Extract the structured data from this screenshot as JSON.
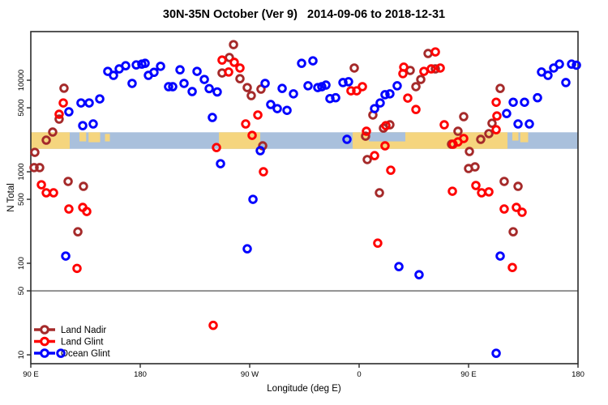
{
  "title": "30N-35N October (Ver 9)   2014-09-06 to 2018-12-31",
  "chart_data": {
    "type": "scatter",
    "xlabel": "Longitude (deg E)",
    "ylabel": "N Total",
    "x_axis": {
      "unit": "degrees east of 90E, wrapping 90E>180>90W>0>90E>180",
      "range_deg": [
        0,
        450
      ],
      "ticks": [
        {
          "deg": 0,
          "label": "90 E"
        },
        {
          "deg": 90,
          "label": "180"
        },
        {
          "deg": 180,
          "label": "90 W"
        },
        {
          "deg": 270,
          "label": "0"
        },
        {
          "deg": 360,
          "label": "90 E"
        },
        {
          "deg": 450,
          "label": "180"
        }
      ]
    },
    "y_axis": {
      "scale": "log",
      "range": [
        8,
        34000
      ],
      "ticks": [
        {
          "value": 10000,
          "label": "10000"
        },
        {
          "value": 5000,
          "label": "5000"
        },
        {
          "value": 1000,
          "label": "1000"
        },
        {
          "value": 500,
          "label": "500"
        },
        {
          "value": 100,
          "label": "100"
        },
        {
          "value": 50,
          "label": "50"
        },
        {
          "value": 10,
          "label": "10"
        }
      ]
    },
    "reference_line_value": 50,
    "reference_line_color": "#8f8f8f",
    "frame_color": "#2b2b2b",
    "map_band": {
      "description": "land/ocean strip for 30N-35N plotted across longitude",
      "top_value": 2700,
      "bottom_value": 1780,
      "ocean_color": "#a9c0dc",
      "land_color": "#f5d57e",
      "land_patches": [
        {
          "deg": [
            0,
            32
          ],
          "top": 0,
          "height": 1
        },
        {
          "deg": [
            40,
            45.5
          ],
          "top": 0,
          "height": 0.55
        },
        {
          "deg": [
            47.5,
            57
          ],
          "top": 0,
          "height": 0.6
        },
        {
          "deg": [
            61,
            65
          ],
          "top": 0.1,
          "height": 0.45
        },
        {
          "deg": [
            154.7,
            188.7
          ],
          "top": 0,
          "height": 1
        },
        {
          "deg": [
            264.7,
            392
          ],
          "top": 0,
          "height": 1
        },
        {
          "deg": [
            396,
            401
          ],
          "top": 0,
          "height": 0.5
        },
        {
          "deg": [
            402.5,
            409
          ],
          "top": 0,
          "height": 0.6
        }
      ],
      "ocean_patches": [
        {
          "deg": [
            278,
            308
          ],
          "top": 0,
          "height": 0.55
        }
      ]
    },
    "legend": {
      "position": "bottom-left",
      "entries": [
        "Land Nadir",
        "Land Glint",
        "Ocean Glint"
      ]
    },
    "series": [
      {
        "name": "Land Nadir",
        "color": "#a52a2a",
        "points": [
          [
            27.3,
            8180
          ],
          [
            23.3,
            3760
          ],
          [
            18,
            2715
          ],
          [
            12.7,
            2215
          ],
          [
            3.3,
            1630
          ],
          [
            2.7,
            1110
          ],
          [
            7.3,
            1110
          ],
          [
            30.7,
            784
          ],
          [
            43.3,
            693
          ],
          [
            38.7,
            221
          ],
          [
            166.7,
            24500
          ],
          [
            163.3,
            17700
          ],
          [
            157.3,
            12000
          ],
          [
            172,
            10400
          ],
          [
            178,
            8320
          ],
          [
            181.3,
            6790
          ],
          [
            189.3,
            8000
          ],
          [
            266,
            13600
          ],
          [
            190.7,
            1920
          ],
          [
            275.3,
            2450
          ],
          [
            276.7,
            1360
          ],
          [
            286.7,
            589
          ],
          [
            281.3,
            4170
          ],
          [
            295.3,
            3260
          ],
          [
            290,
            3000
          ],
          [
            326.7,
            19600
          ],
          [
            312,
            12800
          ],
          [
            332.7,
            13300
          ],
          [
            320.7,
            10200
          ],
          [
            316.7,
            8510
          ],
          [
            356,
            4000
          ],
          [
            351.3,
            2770
          ],
          [
            346,
            2000
          ],
          [
            360.7,
            1665
          ],
          [
            360,
            1085
          ],
          [
            365.3,
            1130
          ],
          [
            389.3,
            784
          ],
          [
            400.7,
            693
          ],
          [
            396.7,
            221
          ],
          [
            386,
            8140
          ],
          [
            379.3,
            3390
          ],
          [
            370,
            2260
          ],
          [
            376.7,
            2610
          ]
        ]
      },
      {
        "name": "Land Glint",
        "color": "#ff0000",
        "points": [
          [
            26.7,
            5650
          ],
          [
            23.3,
            4250
          ],
          [
            8.7,
            721
          ],
          [
            12.7,
            589
          ],
          [
            18.7,
            589
          ],
          [
            31.3,
            392
          ],
          [
            42.7,
            408
          ],
          [
            46,
            368
          ],
          [
            38,
            88
          ],
          [
            157.3,
            16600
          ],
          [
            167.3,
            15700
          ],
          [
            162.7,
            12300
          ],
          [
            172,
            13600
          ],
          [
            182,
            2500
          ],
          [
            152.7,
            1840
          ],
          [
            191.3,
            1000
          ],
          [
            176.7,
            3330
          ],
          [
            186.7,
            4170
          ],
          [
            150,
            21
          ],
          [
            263.3,
            7670
          ],
          [
            268,
            7670
          ],
          [
            272.7,
            8510
          ],
          [
            292,
            3190
          ],
          [
            282.7,
            1500
          ],
          [
            291.3,
            1920
          ],
          [
            296,
            1040
          ],
          [
            285.3,
            166
          ],
          [
            276,
            2770
          ],
          [
            306.7,
            13900
          ],
          [
            306,
            11800
          ],
          [
            323.3,
            12500
          ],
          [
            329.3,
            13300
          ],
          [
            336.7,
            13600
          ],
          [
            332.7,
            20400
          ],
          [
            310,
            6380
          ],
          [
            316.7,
            4790
          ],
          [
            340,
            3260
          ],
          [
            347.3,
            2000
          ],
          [
            351.3,
            2120
          ],
          [
            356,
            2310
          ],
          [
            346.7,
            613
          ],
          [
            366,
            708
          ],
          [
            370.7,
            589
          ],
          [
            376.7,
            603
          ],
          [
            389.3,
            392
          ],
          [
            399.3,
            408
          ],
          [
            404,
            361
          ],
          [
            396,
            90
          ],
          [
            382.7,
            5750
          ],
          [
            383.3,
            4070
          ],
          [
            382.7,
            2880
          ]
        ]
      },
      {
        "name": "Ocean Glint",
        "color": "#0000ff",
        "points": [
          [
            31.3,
            4520
          ],
          [
            41.3,
            5650
          ],
          [
            48,
            5650
          ],
          [
            56.7,
            6250
          ],
          [
            42.7,
            3190
          ],
          [
            51.3,
            3330
          ],
          [
            28.7,
            120
          ],
          [
            24.7,
            10.4
          ],
          [
            63.3,
            12500
          ],
          [
            68,
            11300
          ],
          [
            72.7,
            13300
          ],
          [
            78,
            14400
          ],
          [
            86.7,
            14700
          ],
          [
            91.3,
            15000
          ],
          [
            94,
            15300
          ],
          [
            83.3,
            9230
          ],
          [
            96.7,
            11300
          ],
          [
            101.3,
            12200
          ],
          [
            106.7,
            14200
          ],
          [
            113.3,
            8500
          ],
          [
            116.7,
            8500
          ],
          [
            122.7,
            13000
          ],
          [
            126,
            9230
          ],
          [
            132.7,
            7520
          ],
          [
            136.7,
            12500
          ],
          [
            142.7,
            10200
          ],
          [
            146.7,
            8100
          ],
          [
            153.3,
            7450
          ],
          [
            149.3,
            3920
          ],
          [
            192.7,
            9230
          ],
          [
            206.7,
            8140
          ],
          [
            216,
            7100
          ],
          [
            228,
            8700
          ],
          [
            222.7,
            15300
          ],
          [
            232,
            16300
          ],
          [
            236,
            8320
          ],
          [
            239.3,
            8500
          ],
          [
            242.7,
            8850
          ],
          [
            246,
            6300
          ],
          [
            250.7,
            6440
          ],
          [
            256.7,
            9430
          ],
          [
            261.3,
            9630
          ],
          [
            197.3,
            5430
          ],
          [
            202.7,
            4900
          ],
          [
            210.7,
            4690
          ],
          [
            291.3,
            6950
          ],
          [
            295.3,
            7100
          ],
          [
            287.3,
            5650
          ],
          [
            282.7,
            4900
          ],
          [
            260,
            2260
          ],
          [
            156,
            1225
          ],
          [
            188.7,
            1700
          ],
          [
            182.7,
            500
          ],
          [
            178,
            144
          ],
          [
            302.7,
            92
          ],
          [
            319.3,
            75
          ],
          [
            301.3,
            8700
          ],
          [
            396.7,
            5750
          ],
          [
            406,
            5750
          ],
          [
            391.3,
            4330
          ],
          [
            400.7,
            3330
          ],
          [
            410,
            3330
          ],
          [
            416.7,
            6440
          ],
          [
            420,
            12300
          ],
          [
            425.3,
            11300
          ],
          [
            430,
            13600
          ],
          [
            434.7,
            15000
          ],
          [
            440,
            9430
          ],
          [
            444.7,
            15000
          ],
          [
            448.7,
            14600
          ],
          [
            386,
            120
          ],
          [
            382.7,
            10.4
          ]
        ]
      }
    ]
  }
}
